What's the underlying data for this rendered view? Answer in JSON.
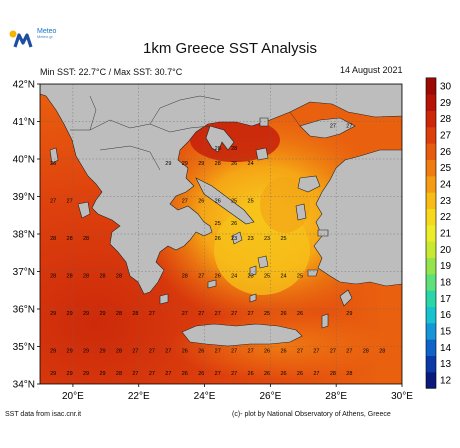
{
  "logo": {
    "name": "Meteo",
    "subtitle": "Meteo.gr"
  },
  "title": "1km Greece SST Analysis",
  "stats": {
    "min_max": "Min SST: 22.7°C / Max SST: 30.7°C"
  },
  "date": "14 August 2021",
  "credits": {
    "source": "SST data from isac.cnr.it",
    "plot": "(c)- plot by National Observatory of Athens, Greece"
  },
  "map": {
    "lon_range": [
      19,
      30
    ],
    "lat_range": [
      34,
      42
    ],
    "x_ticks": [
      {
        "v": 20,
        "label": "20°E"
      },
      {
        "v": 22,
        "label": "22°E"
      },
      {
        "v": 24,
        "label": "24°E"
      },
      {
        "v": 26,
        "label": "26°E"
      },
      {
        "v": 28,
        "label": "28°E"
      },
      {
        "v": 30,
        "label": "30°E"
      }
    ],
    "y_ticks": [
      {
        "v": 34,
        "label": "34°N"
      },
      {
        "v": 35,
        "label": "35°N"
      },
      {
        "v": 36,
        "label": "36°N"
      },
      {
        "v": 37,
        "label": "37°N"
      },
      {
        "v": 38,
        "label": "38°N"
      },
      {
        "v": 39,
        "label": "39°N"
      },
      {
        "v": 40,
        "label": "40°N"
      },
      {
        "v": 41,
        "label": "41°N"
      },
      {
        "v": 42,
        "label": "42°N"
      }
    ],
    "land_color": "#bdbdbd",
    "sst_labels": [
      {
        "lon": 19.4,
        "lat": 39.9,
        "v": "26"
      },
      {
        "lon": 19.4,
        "lat": 38.9,
        "v": "27"
      },
      {
        "lon": 19.9,
        "lat": 38.9,
        "v": "27"
      },
      {
        "lon": 19.4,
        "lat": 37.9,
        "v": "28"
      },
      {
        "lon": 19.9,
        "lat": 37.9,
        "v": "28"
      },
      {
        "lon": 20.4,
        "lat": 37.9,
        "v": "28"
      },
      {
        "lon": 19.4,
        "lat": 36.9,
        "v": "28"
      },
      {
        "lon": 19.9,
        "lat": 36.9,
        "v": "28"
      },
      {
        "lon": 20.4,
        "lat": 36.9,
        "v": "28"
      },
      {
        "lon": 20.9,
        "lat": 36.9,
        "v": "28"
      },
      {
        "lon": 21.4,
        "lat": 36.9,
        "v": "28"
      },
      {
        "lon": 19.4,
        "lat": 35.9,
        "v": "29"
      },
      {
        "lon": 19.9,
        "lat": 35.9,
        "v": "29"
      },
      {
        "lon": 20.4,
        "lat": 35.9,
        "v": "29"
      },
      {
        "lon": 20.9,
        "lat": 35.9,
        "v": "29"
      },
      {
        "lon": 21.4,
        "lat": 35.9,
        "v": "28"
      },
      {
        "lon": 21.9,
        "lat": 35.9,
        "v": "28"
      },
      {
        "lon": 22.4,
        "lat": 35.9,
        "v": "27"
      },
      {
        "lon": 19.4,
        "lat": 34.9,
        "v": "29"
      },
      {
        "lon": 19.9,
        "lat": 34.9,
        "v": "29"
      },
      {
        "lon": 20.4,
        "lat": 34.9,
        "v": "29"
      },
      {
        "lon": 20.9,
        "lat": 34.9,
        "v": "29"
      },
      {
        "lon": 21.4,
        "lat": 34.9,
        "v": "28"
      },
      {
        "lon": 21.9,
        "lat": 34.9,
        "v": "27"
      },
      {
        "lon": 22.4,
        "lat": 34.9,
        "v": "27"
      },
      {
        "lon": 22.9,
        "lat": 34.9,
        "v": "27"
      },
      {
        "lon": 23.4,
        "lat": 34.9,
        "v": "26"
      },
      {
        "lon": 23.9,
        "lat": 34.9,
        "v": "26"
      },
      {
        "lon": 24.4,
        "lat": 34.9,
        "v": "27"
      },
      {
        "lon": 24.9,
        "lat": 34.9,
        "v": "27"
      },
      {
        "lon": 25.4,
        "lat": 34.9,
        "v": "27"
      },
      {
        "lon": 25.9,
        "lat": 34.9,
        "v": "26"
      },
      {
        "lon": 26.4,
        "lat": 34.9,
        "v": "26"
      },
      {
        "lon": 26.9,
        "lat": 34.9,
        "v": "27"
      },
      {
        "lon": 27.4,
        "lat": 34.9,
        "v": "27"
      },
      {
        "lon": 27.9,
        "lat": 34.9,
        "v": "27"
      },
      {
        "lon": 28.4,
        "lat": 34.9,
        "v": "27"
      },
      {
        "lon": 28.9,
        "lat": 34.9,
        "v": "28"
      },
      {
        "lon": 29.4,
        "lat": 34.9,
        "v": "28"
      },
      {
        "lon": 19.4,
        "lat": 34.3,
        "v": "29"
      },
      {
        "lon": 19.9,
        "lat": 34.3,
        "v": "29"
      },
      {
        "lon": 20.4,
        "lat": 34.3,
        "v": "29"
      },
      {
        "lon": 20.9,
        "lat": 34.3,
        "v": "29"
      },
      {
        "lon": 21.4,
        "lat": 34.3,
        "v": "28"
      },
      {
        "lon": 21.9,
        "lat": 34.3,
        "v": "27"
      },
      {
        "lon": 22.4,
        "lat": 34.3,
        "v": "27"
      },
      {
        "lon": 22.9,
        "lat": 34.3,
        "v": "27"
      },
      {
        "lon": 23.4,
        "lat": 34.3,
        "v": "26"
      },
      {
        "lon": 23.9,
        "lat": 34.3,
        "v": "26"
      },
      {
        "lon": 24.4,
        "lat": 34.3,
        "v": "27"
      },
      {
        "lon": 24.9,
        "lat": 34.3,
        "v": "27"
      },
      {
        "lon": 25.4,
        "lat": 34.3,
        "v": "26"
      },
      {
        "lon": 25.9,
        "lat": 34.3,
        "v": "26"
      },
      {
        "lon": 26.4,
        "lat": 34.3,
        "v": "26"
      },
      {
        "lon": 26.9,
        "lat": 34.3,
        "v": "26"
      },
      {
        "lon": 27.4,
        "lat": 34.3,
        "v": "27"
      },
      {
        "lon": 27.9,
        "lat": 34.3,
        "v": "28"
      },
      {
        "lon": 28.4,
        "lat": 34.3,
        "v": "28"
      },
      {
        "lon": 23.4,
        "lat": 35.9,
        "v": "27"
      },
      {
        "lon": 23.9,
        "lat": 35.9,
        "v": "27"
      },
      {
        "lon": 24.4,
        "lat": 35.9,
        "v": "27"
      },
      {
        "lon": 24.9,
        "lat": 35.9,
        "v": "27"
      },
      {
        "lon": 25.4,
        "lat": 35.9,
        "v": "27"
      },
      {
        "lon": 25.9,
        "lat": 35.9,
        "v": "25"
      },
      {
        "lon": 26.4,
        "lat": 35.9,
        "v": "26"
      },
      {
        "lon": 26.9,
        "lat": 35.9,
        "v": "26"
      },
      {
        "lon": 28.4,
        "lat": 35.9,
        "v": "29"
      },
      {
        "lon": 23.4,
        "lat": 36.9,
        "v": "28"
      },
      {
        "lon": 23.9,
        "lat": 36.9,
        "v": "27"
      },
      {
        "lon": 24.4,
        "lat": 36.9,
        "v": "26"
      },
      {
        "lon": 24.9,
        "lat": 36.9,
        "v": "24"
      },
      {
        "lon": 25.4,
        "lat": 36.9,
        "v": "23"
      },
      {
        "lon": 25.9,
        "lat": 36.9,
        "v": "25"
      },
      {
        "lon": 26.4,
        "lat": 36.9,
        "v": "24"
      },
      {
        "lon": 26.9,
        "lat": 36.9,
        "v": "25"
      },
      {
        "lon": 24.4,
        "lat": 37.9,
        "v": "26"
      },
      {
        "lon": 24.9,
        "lat": 37.9,
        "v": "23"
      },
      {
        "lon": 25.4,
        "lat": 37.9,
        "v": "23"
      },
      {
        "lon": 25.9,
        "lat": 37.9,
        "v": "23"
      },
      {
        "lon": 26.4,
        "lat": 37.9,
        "v": "25"
      },
      {
        "lon": 23.4,
        "lat": 38.9,
        "v": "27"
      },
      {
        "lon": 23.9,
        "lat": 38.9,
        "v": "26"
      },
      {
        "lon": 24.4,
        "lat": 38.9,
        "v": "26"
      },
      {
        "lon": 24.9,
        "lat": 38.9,
        "v": "25"
      },
      {
        "lon": 25.4,
        "lat": 38.9,
        "v": "25"
      },
      {
        "lon": 24.4,
        "lat": 38.3,
        "v": "25"
      },
      {
        "lon": 24.9,
        "lat": 38.3,
        "v": "26"
      },
      {
        "lon": 22.9,
        "lat": 39.9,
        "v": "29"
      },
      {
        "lon": 23.4,
        "lat": 39.9,
        "v": "29"
      },
      {
        "lon": 23.9,
        "lat": 39.9,
        "v": "29"
      },
      {
        "lon": 24.4,
        "lat": 39.9,
        "v": "28"
      },
      {
        "lon": 24.9,
        "lat": 39.9,
        "v": "26"
      },
      {
        "lon": 25.4,
        "lat": 39.9,
        "v": "24"
      },
      {
        "lon": 24.4,
        "lat": 40.3,
        "v": "28"
      },
      {
        "lon": 24.9,
        "lat": 40.3,
        "v": "28"
      },
      {
        "lon": 27.9,
        "lat": 40.9,
        "v": "27"
      },
      {
        "lon": 28.4,
        "lat": 40.9,
        "v": "27"
      }
    ]
  },
  "colorbar": {
    "ticks": [
      "12",
      "13",
      "14",
      "15",
      "16",
      "17",
      "18",
      "19",
      "20",
      "21",
      "22",
      "23",
      "24",
      "25",
      "26",
      "27",
      "28",
      "29",
      "30"
    ],
    "colors": [
      "#0a1a7a",
      "#0b3aa6",
      "#0f63c8",
      "#1596d8",
      "#19c2cf",
      "#2ad6a8",
      "#5ee07a",
      "#96e44d",
      "#c8e832",
      "#ecec2a",
      "#f6d81f",
      "#f8bc17",
      "#f59c14",
      "#f07c11",
      "#e85c0f",
      "#dc3e0c",
      "#cc2709",
      "#b71407",
      "#9c0a05"
    ]
  }
}
